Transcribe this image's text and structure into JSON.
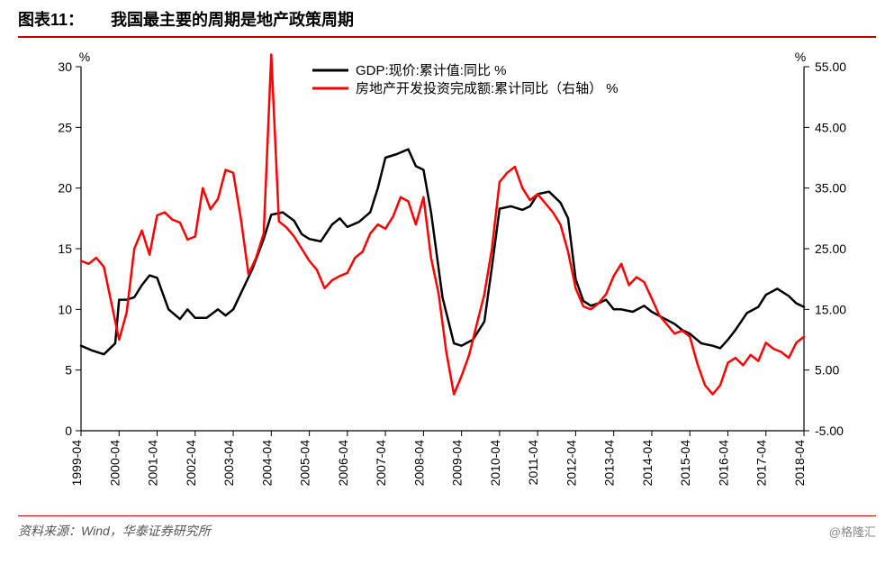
{
  "title_label": "图表11：",
  "title_text": "我国最主要的周期是地产政策周期",
  "source_text": "资料来源：Wind，华泰证券研究所",
  "watermark": "@格隆汇",
  "legend": {
    "series1": "GDP:现价:累计值:同比 %",
    "series2": "房地产开发投资完成额:累计同比（右轴） %"
  },
  "axis_unit_left": "%",
  "axis_unit_right": "%",
  "colors": {
    "series1": "#000000",
    "series2": "#ff0000",
    "accent": "#c00000",
    "grid": "#000000",
    "bg": "#ffffff"
  },
  "chart": {
    "type": "line",
    "line_width": 2.5,
    "y_left": {
      "min": 0,
      "max": 30,
      "step": 5
    },
    "y_right": {
      "min": -5.0,
      "max": 55.0,
      "step": 10.0
    },
    "x_categories": [
      "1999-04",
      "2000-04",
      "2001-04",
      "2002-04",
      "2003-04",
      "2004-04",
      "2005-04",
      "2006-04",
      "2007-04",
      "2008-04",
      "2009-04",
      "2010-04",
      "2011-04",
      "2012-04",
      "2013-04",
      "2014-04",
      "2015-04",
      "2016-04",
      "2017-04",
      "2018-04"
    ],
    "series1_data": [
      [
        0,
        7.0
      ],
      [
        0.3,
        6.6
      ],
      [
        0.6,
        6.3
      ],
      [
        0.9,
        7.2
      ],
      [
        1.0,
        10.8
      ],
      [
        1.2,
        10.8
      ],
      [
        1.4,
        11.0
      ],
      [
        1.6,
        12.0
      ],
      [
        1.8,
        12.8
      ],
      [
        2.0,
        12.6
      ],
      [
        2.3,
        10.0
      ],
      [
        2.6,
        9.2
      ],
      [
        2.8,
        10.0
      ],
      [
        3.0,
        9.3
      ],
      [
        3.3,
        9.3
      ],
      [
        3.6,
        10.0
      ],
      [
        3.8,
        9.5
      ],
      [
        4.0,
        10.0
      ],
      [
        4.5,
        13.3
      ],
      [
        4.8,
        15.8
      ],
      [
        5.0,
        17.8
      ],
      [
        5.3,
        18.0
      ],
      [
        5.6,
        17.3
      ],
      [
        5.8,
        16.2
      ],
      [
        6.0,
        15.8
      ],
      [
        6.3,
        15.6
      ],
      [
        6.6,
        17.0
      ],
      [
        6.8,
        17.5
      ],
      [
        7.0,
        16.8
      ],
      [
        7.3,
        17.2
      ],
      [
        7.6,
        18.0
      ],
      [
        7.8,
        20.0
      ],
      [
        8.0,
        22.5
      ],
      [
        8.3,
        22.8
      ],
      [
        8.6,
        23.2
      ],
      [
        8.8,
        21.8
      ],
      [
        9.0,
        21.5
      ],
      [
        9.2,
        18.0
      ],
      [
        9.5,
        11.0
      ],
      [
        9.8,
        7.2
      ],
      [
        10.0,
        7.0
      ],
      [
        10.3,
        7.5
      ],
      [
        10.6,
        9.0
      ],
      [
        10.8,
        13.5
      ],
      [
        11.0,
        18.3
      ],
      [
        11.3,
        18.5
      ],
      [
        11.6,
        18.2
      ],
      [
        11.8,
        18.5
      ],
      [
        12.0,
        19.5
      ],
      [
        12.3,
        19.7
      ],
      [
        12.6,
        18.8
      ],
      [
        12.8,
        17.5
      ],
      [
        13.0,
        12.5
      ],
      [
        13.2,
        10.7
      ],
      [
        13.4,
        10.3
      ],
      [
        13.6,
        10.5
      ],
      [
        13.8,
        10.8
      ],
      [
        14.0,
        10.0
      ],
      [
        14.2,
        10.0
      ],
      [
        14.5,
        9.8
      ],
      [
        14.8,
        10.3
      ],
      [
        15.0,
        9.8
      ],
      [
        15.3,
        9.3
      ],
      [
        15.6,
        8.8
      ],
      [
        15.8,
        8.3
      ],
      [
        16.0,
        8.0
      ],
      [
        16.3,
        7.2
      ],
      [
        16.6,
        7.0
      ],
      [
        16.8,
        6.8
      ],
      [
        17.0,
        7.5
      ],
      [
        17.2,
        8.3
      ],
      [
        17.5,
        9.7
      ],
      [
        17.8,
        10.2
      ],
      [
        18.0,
        11.2
      ],
      [
        18.3,
        11.7
      ],
      [
        18.6,
        11.1
      ],
      [
        18.8,
        10.5
      ],
      [
        19.0,
        10.2
      ]
    ],
    "series2_data": [
      [
        0,
        23.0
      ],
      [
        0.2,
        22.5
      ],
      [
        0.4,
        23.5
      ],
      [
        0.6,
        22.0
      ],
      [
        0.8,
        16.0
      ],
      [
        1.0,
        10.0
      ],
      [
        1.2,
        14.5
      ],
      [
        1.4,
        25.0
      ],
      [
        1.6,
        28.0
      ],
      [
        1.8,
        24.0
      ],
      [
        2.0,
        30.5
      ],
      [
        2.2,
        31.0
      ],
      [
        2.4,
        29.8
      ],
      [
        2.6,
        29.3
      ],
      [
        2.8,
        26.5
      ],
      [
        3.0,
        27.0
      ],
      [
        3.2,
        35.0
      ],
      [
        3.4,
        31.5
      ],
      [
        3.6,
        33.2
      ],
      [
        3.8,
        38.0
      ],
      [
        4.0,
        37.5
      ],
      [
        4.2,
        30.0
      ],
      [
        4.4,
        20.8
      ],
      [
        4.6,
        23.5
      ],
      [
        4.8,
        27.5
      ],
      [
        5.0,
        57.0
      ],
      [
        5.2,
        29.5
      ],
      [
        5.4,
        28.5
      ],
      [
        5.6,
        27.0
      ],
      [
        5.8,
        25.0
      ],
      [
        6.0,
        23.0
      ],
      [
        6.2,
        21.5
      ],
      [
        6.4,
        18.5
      ],
      [
        6.6,
        19.8
      ],
      [
        6.8,
        20.5
      ],
      [
        7.0,
        21.0
      ],
      [
        7.2,
        23.5
      ],
      [
        7.4,
        24.5
      ],
      [
        7.6,
        27.5
      ],
      [
        7.8,
        29.0
      ],
      [
        8.0,
        28.3
      ],
      [
        8.2,
        30.3
      ],
      [
        8.4,
        33.5
      ],
      [
        8.6,
        32.8
      ],
      [
        8.8,
        29.0
      ],
      [
        9.0,
        33.5
      ],
      [
        9.2,
        23.5
      ],
      [
        9.4,
        17.5
      ],
      [
        9.6,
        8.0
      ],
      [
        9.8,
        1.0
      ],
      [
        10.0,
        4.0
      ],
      [
        10.2,
        7.5
      ],
      [
        10.4,
        12.5
      ],
      [
        10.6,
        17.5
      ],
      [
        10.8,
        25.0
      ],
      [
        11.0,
        36.0
      ],
      [
        11.2,
        37.5
      ],
      [
        11.4,
        38.5
      ],
      [
        11.6,
        35.0
      ],
      [
        11.8,
        33.0
      ],
      [
        12.0,
        34.0
      ],
      [
        12.2,
        32.5
      ],
      [
        12.4,
        31.0
      ],
      [
        12.6,
        29.0
      ],
      [
        12.8,
        24.5
      ],
      [
        13.0,
        18.5
      ],
      [
        13.2,
        15.5
      ],
      [
        13.4,
        15.0
      ],
      [
        13.6,
        16.0
      ],
      [
        13.8,
        17.5
      ],
      [
        14.0,
        20.5
      ],
      [
        14.2,
        22.5
      ],
      [
        14.4,
        19.0
      ],
      [
        14.6,
        20.3
      ],
      [
        14.8,
        19.5
      ],
      [
        15.0,
        16.8
      ],
      [
        15.2,
        14.0
      ],
      [
        15.4,
        12.5
      ],
      [
        15.6,
        11.0
      ],
      [
        15.8,
        11.5
      ],
      [
        16.0,
        10.5
      ],
      [
        16.2,
        6.0
      ],
      [
        16.4,
        2.5
      ],
      [
        16.6,
        1.0
      ],
      [
        16.8,
        2.5
      ],
      [
        17.0,
        6.2
      ],
      [
        17.2,
        7.0
      ],
      [
        17.4,
        5.8
      ],
      [
        17.6,
        7.5
      ],
      [
        17.8,
        6.5
      ],
      [
        18.0,
        9.5
      ],
      [
        18.2,
        8.5
      ],
      [
        18.4,
        8.0
      ],
      [
        18.6,
        7.0
      ],
      [
        18.8,
        9.5
      ],
      [
        19.0,
        10.5
      ]
    ]
  }
}
